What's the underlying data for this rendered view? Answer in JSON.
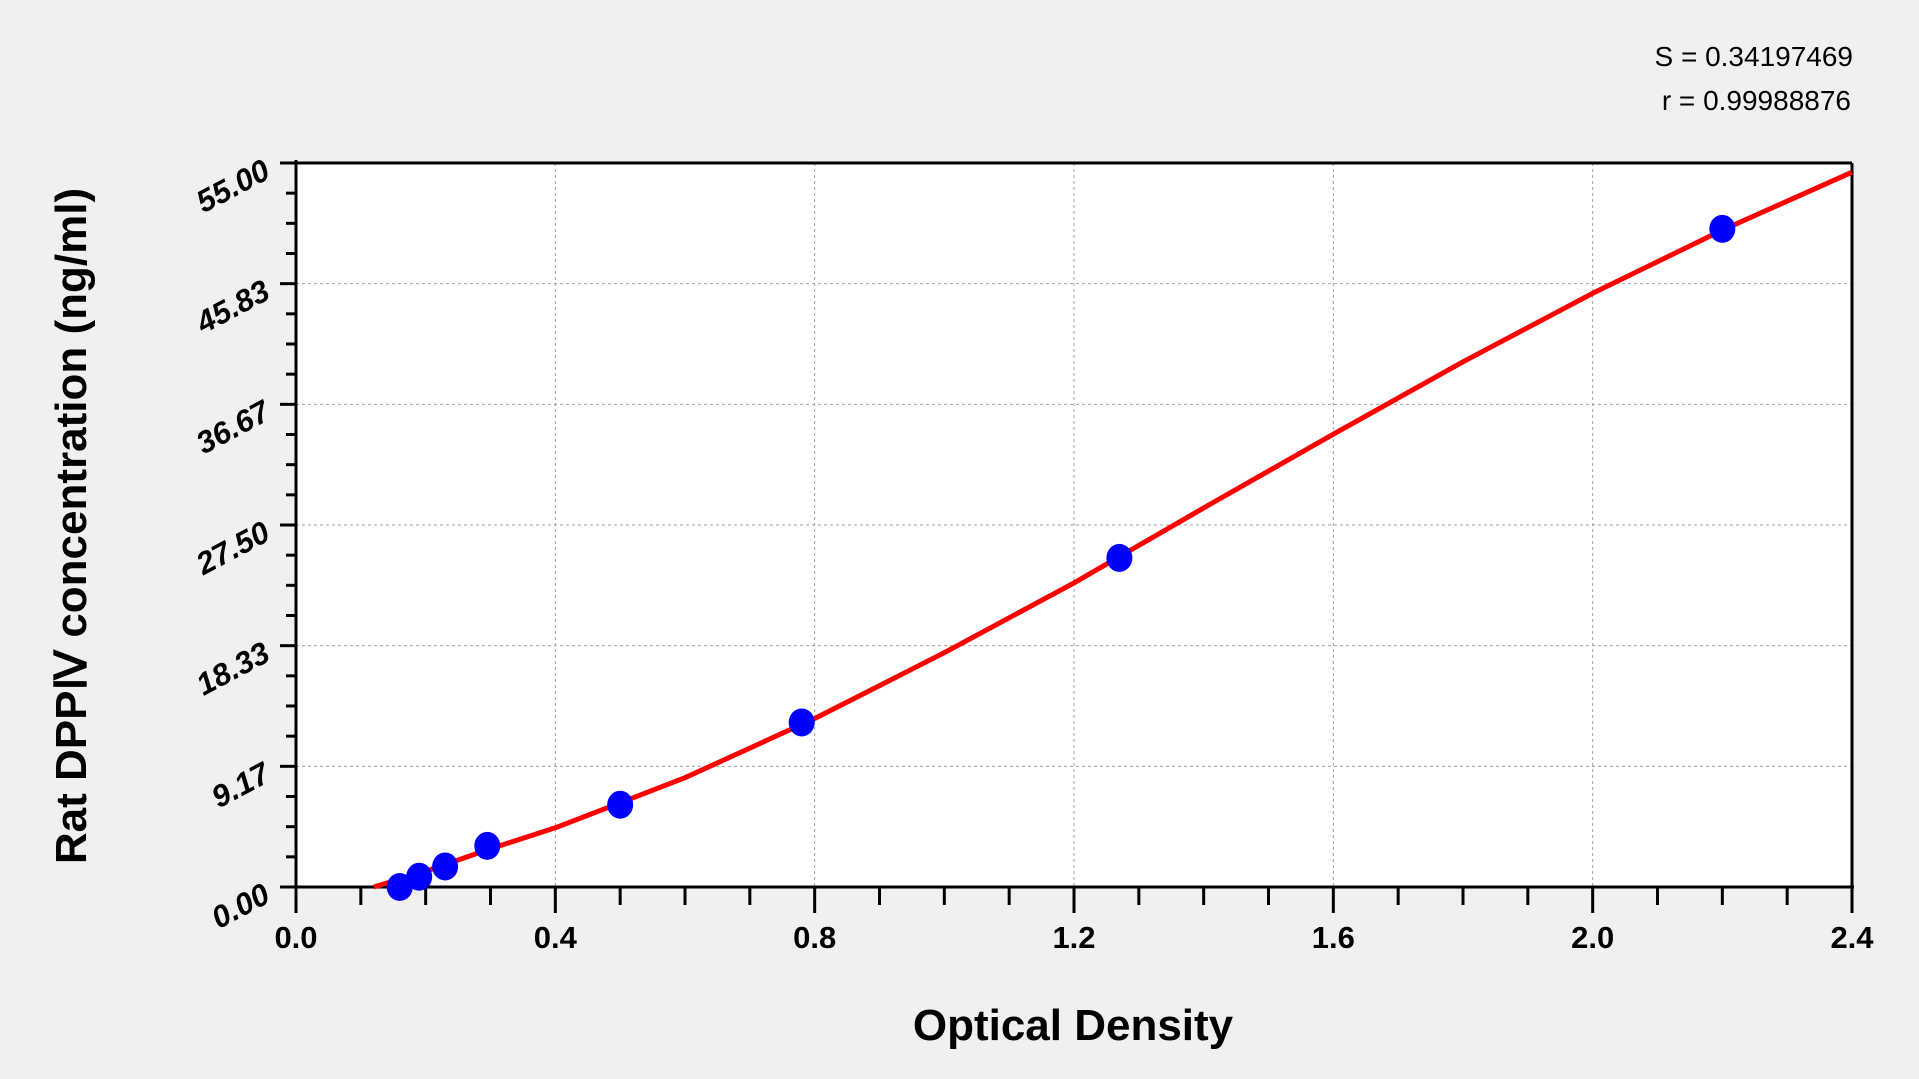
{
  "chart_data": {
    "type": "scatter",
    "xlabel": "Optical Density",
    "ylabel": "Rat DPPⅣ  concentration (ng/ml)",
    "xlim": [
      0,
      2.4
    ],
    "ylim": [
      0,
      55
    ],
    "xticks": [
      "0.0",
      "0.4",
      "0.8",
      "1.2",
      "1.6",
      "2.0",
      "2.4"
    ],
    "yticks": [
      "0.00",
      "9.17",
      "18.33",
      "27.50",
      "36.67",
      "45.83",
      "55.00"
    ],
    "grid": true,
    "annotations": [
      "S = 0.34197469",
      "r = 0.99988876"
    ],
    "points": {
      "x": [
        0.16,
        0.19,
        0.23,
        0.295,
        0.5,
        0.78,
        1.27,
        2.2
      ],
      "y": [
        0,
        0.78,
        1.56,
        3.125,
        6.25,
        12.5,
        25,
        50
      ],
      "color": "#0000ff"
    },
    "fit_curve": {
      "x": [
        0.12,
        0.2,
        0.3,
        0.4,
        0.5,
        0.6,
        0.8,
        1.0,
        1.2,
        1.4,
        1.6,
        1.8,
        2.0,
        2.2,
        2.4
      ],
      "y": [
        0,
        1.2,
        2.9,
        4.5,
        6.4,
        8.3,
        12.8,
        17.8,
        23.1,
        28.8,
        34.4,
        39.9,
        45.1,
        49.9,
        54.3
      ],
      "color": "#ff0000"
    }
  }
}
